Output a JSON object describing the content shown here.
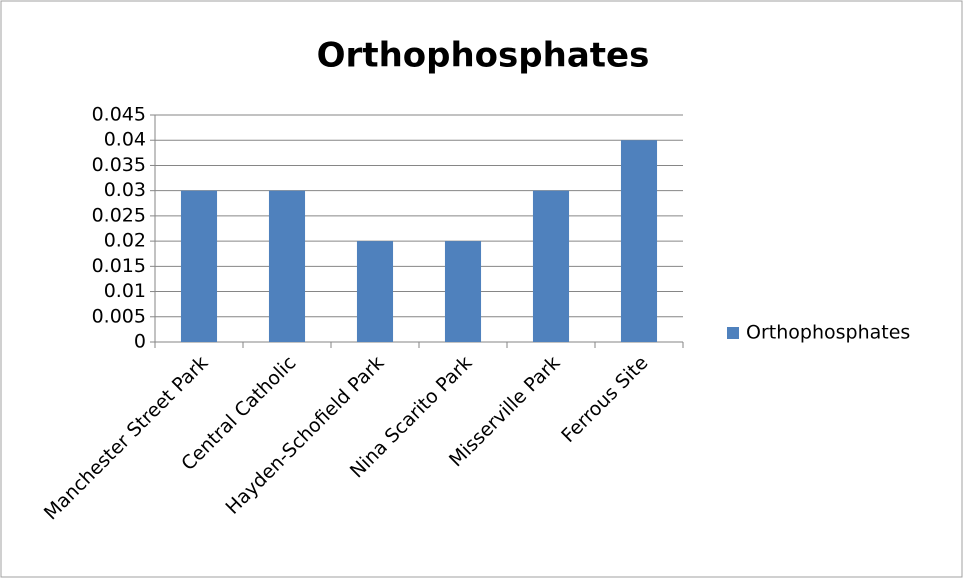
{
  "chart_data": {
    "type": "bar",
    "title": "Orthophosphates",
    "categories": [
      "Manchester Street Park",
      "Central Catholic",
      "Hayden-Schofield Park",
      "Nina Scarito Park",
      "Misserville Park",
      "Ferrous Site"
    ],
    "series": [
      {
        "name": "Orthophosphates",
        "color": "#4f81bd",
        "values": [
          0.03,
          0.03,
          0.02,
          0.02,
          0.03,
          0.04
        ]
      }
    ],
    "ylim": [
      0,
      0.045
    ],
    "yticks": [
      0,
      0.005,
      0.01,
      0.015,
      0.02,
      0.025,
      0.03,
      0.035,
      0.04,
      0.045
    ],
    "grid": true,
    "legend": "right"
  }
}
